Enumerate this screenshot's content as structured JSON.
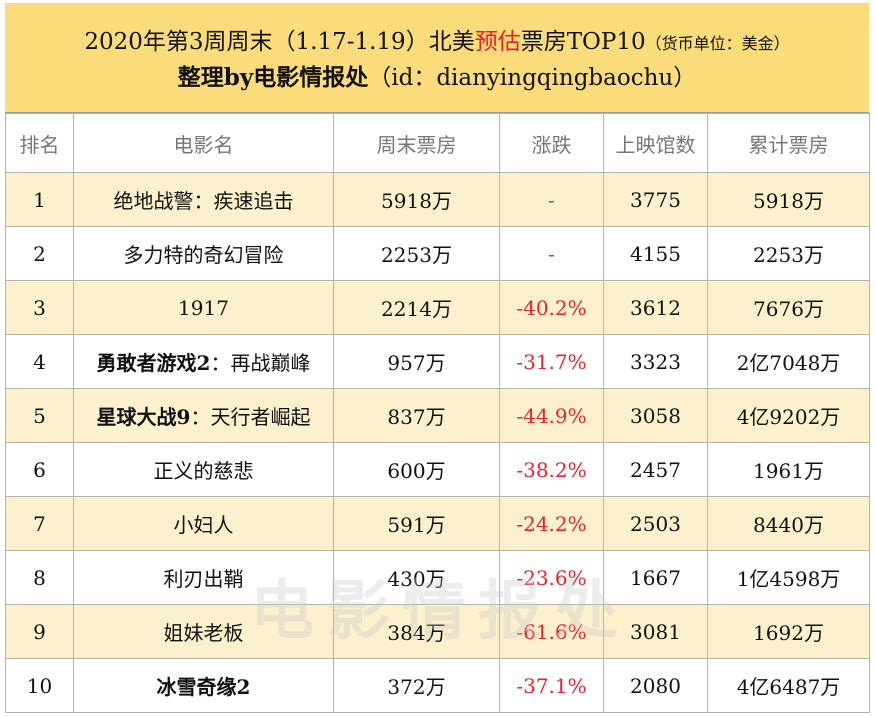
{
  "header": {
    "line1_prefix": "2020年第3周周末（1.17-1.19）北美",
    "line1_highlight": "预估",
    "line1_suffix": "票房TOP10",
    "line1_unit": "（货币单位：美金）",
    "line2_bold": "整理by电影情报处",
    "line2_rest": "（id：dianyingqingbaochu）"
  },
  "columns": [
    "排名",
    "电影名",
    "周末票房",
    "涨跌",
    "上映馆数",
    "累计票房"
  ],
  "rows": [
    {
      "rank": "1",
      "title_bold": "",
      "title": "绝地战警：疾速追击",
      "weekend": "5918万",
      "change": "-",
      "theaters": "3775",
      "total": "5918万"
    },
    {
      "rank": "2",
      "title_bold": "",
      "title": "多力特的奇幻冒险",
      "weekend": "2253万",
      "change": "-",
      "theaters": "4155",
      "total": "2253万"
    },
    {
      "rank": "3",
      "title_bold": "",
      "title": "1917",
      "weekend": "2214万",
      "change": "-40.2%",
      "theaters": "3612",
      "total": "7676万"
    },
    {
      "rank": "4",
      "title_bold": "勇敢者游戏2",
      "title": "：再战巅峰",
      "weekend": "957万",
      "change": "-31.7%",
      "theaters": "3323",
      "total": "2亿7048万"
    },
    {
      "rank": "5",
      "title_bold": "星球大战9",
      "title": "：天行者崛起",
      "weekend": "837万",
      "change": "-44.9%",
      "theaters": "3058",
      "total": "4亿9202万"
    },
    {
      "rank": "6",
      "title_bold": "",
      "title": "正义的慈悲",
      "weekend": "600万",
      "change": "-38.2%",
      "theaters": "2457",
      "total": "1961万"
    },
    {
      "rank": "7",
      "title_bold": "",
      "title": "小妇人",
      "weekend": "591万",
      "change": "-24.2%",
      "theaters": "2503",
      "total": "8440万"
    },
    {
      "rank": "8",
      "title_bold": "",
      "title": "利刃出鞘",
      "weekend": "430万",
      "change": "-23.6%",
      "theaters": "1667",
      "total": "1亿4598万"
    },
    {
      "rank": "9",
      "title_bold": "",
      "title": "姐妹老板",
      "weekend": "384万",
      "change": "-61.6%",
      "theaters": "3081",
      "total": "1692万"
    },
    {
      "rank": "10",
      "title_bold": "冰雪奇缘2",
      "title": "",
      "weekend": "372万",
      "change": "-37.1%",
      "theaters": "2080",
      "total": "4亿6487万"
    }
  ],
  "watermark": "电影情报处",
  "colors": {
    "header_bg": "#fbdc7a",
    "odd_row_bg": "#fdf0cc",
    "negative": "#e0262f",
    "total": "#2aa7d6",
    "highlight": "#e8222c"
  }
}
